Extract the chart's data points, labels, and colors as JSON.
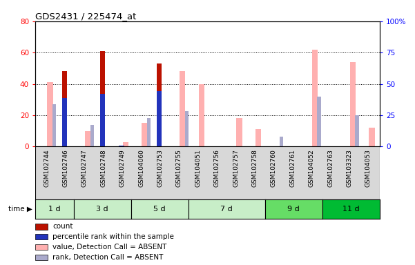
{
  "title": "GDS2431 / 225474_at",
  "samples": [
    "GSM102744",
    "GSM102746",
    "GSM102747",
    "GSM102748",
    "GSM102749",
    "GSM104060",
    "GSM102753",
    "GSM102755",
    "GSM104051",
    "GSM102756",
    "GSM102757",
    "GSM102758",
    "GSM102760",
    "GSM102761",
    "GSM104052",
    "GSM102763",
    "GSM103323",
    "GSM104053"
  ],
  "count_values": [
    0,
    48,
    0,
    61,
    0,
    0,
    53,
    0,
    0,
    0,
    0,
    0,
    0,
    0,
    0,
    0,
    0,
    0
  ],
  "percentile_rank_values": [
    0,
    39,
    0,
    42,
    1,
    0,
    44,
    0,
    0,
    0,
    0,
    0,
    0,
    0,
    0,
    0,
    0,
    0
  ],
  "absent_value_values": [
    41,
    0,
    10,
    0,
    3,
    15,
    0,
    48,
    40,
    0,
    18,
    11,
    0,
    0,
    62,
    0,
    54,
    12
  ],
  "absent_rank_values": [
    34,
    0,
    17,
    0,
    0,
    23,
    0,
    28,
    0,
    0,
    0,
    0,
    8,
    0,
    40,
    0,
    25,
    0
  ],
  "time_groups": [
    {
      "label": "1 d",
      "start": 0,
      "end": 2,
      "color": "#c8eec8"
    },
    {
      "label": "3 d",
      "start": 2,
      "end": 5,
      "color": "#c8eec8"
    },
    {
      "label": "5 d",
      "start": 5,
      "end": 8,
      "color": "#c8eec8"
    },
    {
      "label": "7 d",
      "start": 8,
      "end": 12,
      "color": "#c8eec8"
    },
    {
      "label": "9 d",
      "start": 12,
      "end": 15,
      "color": "#66dd66"
    },
    {
      "label": "11 d",
      "start": 15,
      "end": 18,
      "color": "#00bb33"
    }
  ],
  "left_ylim": [
    0,
    80
  ],
  "right_ylim": [
    0,
    100
  ],
  "left_yticks": [
    0,
    20,
    40,
    60,
    80
  ],
  "right_yticks": [
    0,
    25,
    50,
    75,
    100
  ],
  "right_yticklabels": [
    "0",
    "25",
    "50",
    "75",
    "100%"
  ],
  "color_count": "#bb1100",
  "color_percentile": "#2233bb",
  "color_absent_value": "#ffb0b0",
  "color_absent_rank": "#aaaacc",
  "legend_items": [
    {
      "label": "count",
      "color": "#bb1100"
    },
    {
      "label": "percentile rank within the sample",
      "color": "#2233bb"
    },
    {
      "label": "value, Detection Call = ABSENT",
      "color": "#ffb0b0"
    },
    {
      "label": "rank, Detection Call = ABSENT",
      "color": "#aaaacc"
    }
  ]
}
